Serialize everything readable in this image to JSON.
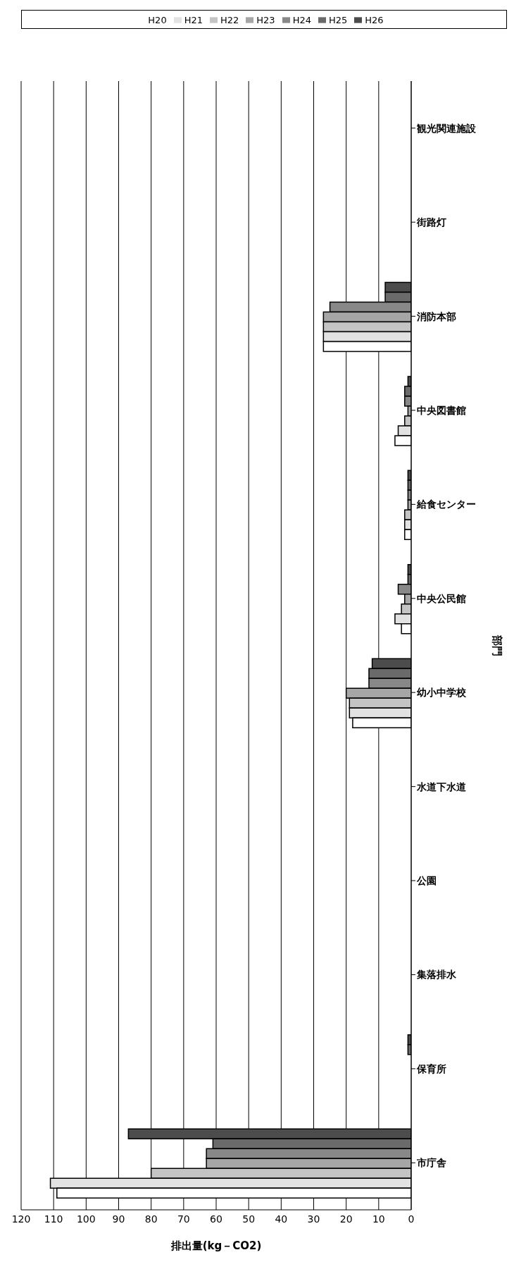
{
  "chart_data": {
    "type": "bar",
    "orientation": "horizontal",
    "categories": [
      "観光関連施設",
      "街路灯",
      "消防本部",
      "中央図書館",
      "給食センター",
      "中央公民館",
      "幼小中学校",
      "水道下水道",
      "公園",
      "集落排水",
      "保育所",
      "市庁舎"
    ],
    "series": [
      {
        "name": "H20",
        "color": "#ffffff",
        "values": [
          0,
          0,
          27,
          5,
          2,
          3,
          18,
          0,
          0,
          0,
          0,
          109
        ]
      },
      {
        "name": "H21",
        "color": "#e2e2e2",
        "values": [
          0,
          0,
          27,
          4,
          2,
          5,
          19,
          0,
          0,
          0,
          0,
          111
        ]
      },
      {
        "name": "H22",
        "color": "#c4c4c4",
        "values": [
          0,
          0,
          27,
          2,
          2,
          3,
          19,
          0,
          0,
          0,
          0,
          80
        ]
      },
      {
        "name": "H23",
        "color": "#a6a6a6",
        "values": [
          0,
          0,
          27,
          1,
          1,
          2,
          20,
          0,
          0,
          0,
          0,
          63
        ]
      },
      {
        "name": "H24",
        "color": "#888888",
        "values": [
          0,
          0,
          25,
          2,
          1,
          4,
          13,
          0,
          0,
          0,
          0,
          63
        ]
      },
      {
        "name": "H25",
        "color": "#6a6a6a",
        "values": [
          0,
          0,
          8,
          2,
          1,
          1,
          13,
          0,
          0,
          0,
          1,
          61
        ]
      },
      {
        "name": "H26",
        "color": "#4c4c4c",
        "values": [
          0,
          0,
          8,
          1,
          1,
          1,
          12,
          0,
          0,
          0,
          1,
          87
        ]
      }
    ],
    "xlabel": "排出量(kg－CO2)",
    "ylabel": "部門",
    "xlim": [
      120,
      0
    ],
    "xticks": [
      120,
      110,
      100,
      90,
      80,
      70,
      60,
      50,
      40,
      30,
      20,
      10,
      0
    ],
    "grid": "x",
    "legend": "top"
  }
}
